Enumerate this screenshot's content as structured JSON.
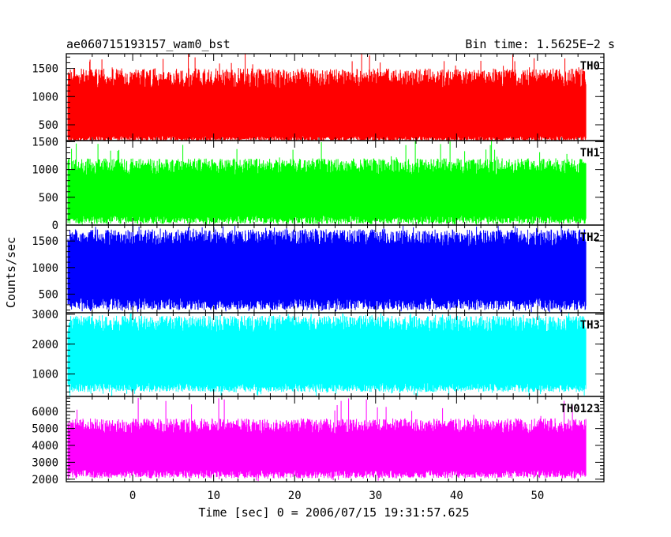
{
  "header": {
    "title": "ae060715193157_wam0_bst",
    "bin_time": "Bin time: 1.5625E−2 s"
  },
  "chart_data": {
    "type": "line",
    "xlabel": "Time [sec] 0 = 2006/07/15 19:31:57.625",
    "ylabel": "Counts/sec",
    "xlim": [
      -8.2,
      58.2
    ],
    "x_ticks": [
      0,
      10,
      20,
      30,
      40,
      50
    ],
    "data_x_range": [
      -8,
      56
    ],
    "grid": false,
    "panels": [
      {
        "name": "TH0",
        "color": "#ff0000",
        "ylim": [
          220,
          1760
        ],
        "yticks": [
          500,
          1000,
          1500
        ],
        "band_low": [
          210,
          300
        ],
        "band_high": [
          1150,
          1500
        ],
        "spike_max": 1760,
        "dip_min": 220
      },
      {
        "name": "TH1",
        "color": "#00ff00",
        "ylim": [
          0,
          1520
        ],
        "yticks": [
          0,
          500,
          1000,
          1500
        ],
        "band_low": [
          20,
          170
        ],
        "band_high": [
          900,
          1200
        ],
        "spike_max": 1520,
        "dip_min": 0
      },
      {
        "name": "TH2",
        "color": "#0000ff",
        "ylim": [
          150,
          1800
        ],
        "yticks": [
          500,
          1000,
          1500
        ],
        "band_low": [
          200,
          430
        ],
        "band_high": [
          1400,
          1720
        ],
        "spike_max": 1800,
        "dip_min": 150
      },
      {
        "name": "TH3",
        "color": "#00ffff",
        "ylim": [
          250,
          3050
        ],
        "yticks": [
          1000,
          2000,
          3000
        ],
        "band_low": [
          400,
          700
        ],
        "band_high": [
          2400,
          2950
        ],
        "spike_max": 3050,
        "dip_min": 250
      },
      {
        "name": "TH0123",
        "color": "#ff00ff",
        "ylim": [
          1850,
          6900
        ],
        "yticks": [
          2000,
          3000,
          4000,
          5000,
          6000
        ],
        "band_low": [
          2050,
          2550
        ],
        "band_high": [
          4700,
          5600
        ],
        "spike_max": 6900,
        "dip_min": 1850
      }
    ]
  }
}
